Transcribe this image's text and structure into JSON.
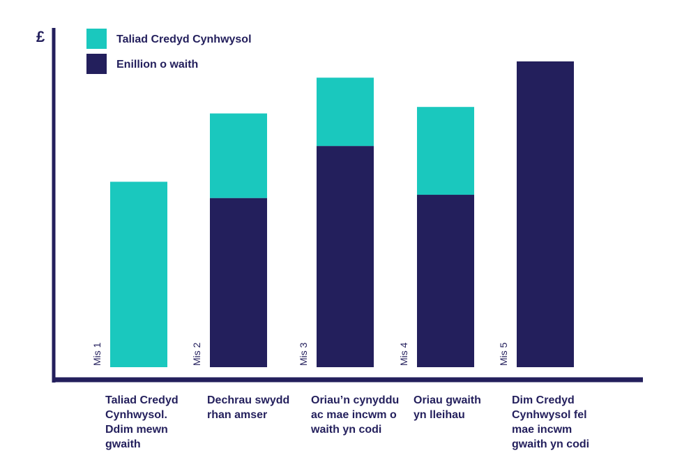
{
  "chart_data": {
    "type": "bar",
    "stacked": true,
    "y_axis_symbol": "£",
    "y_tick_labels": false,
    "grid": false,
    "legend_position": "top-left",
    "colors": {
      "Taliad Credyd Cynhwysol": "#1ac8be",
      "Enillion o waith": "#231f5c",
      "axis": "#231f5c",
      "text": "#231f5c"
    },
    "legend": [
      {
        "name": "Taliad Credyd Cynhwysol",
        "color": "#1ac8be"
      },
      {
        "name": "Enillion o waith",
        "color": "#231f5c"
      }
    ],
    "month_labels": [
      "Mis 1",
      "Mis 2",
      "Mis 3",
      "Mis 4",
      "Mis 5"
    ],
    "categories": [
      "Taliad Credyd Cynhwysol. Ddim mewn gwaith",
      "Dechrau swydd rhan amser",
      "Oriau’n cynyddu ac mae incwm o waith yn codi",
      "Oriau gwaith yn lleihau",
      "Dim Credyd Cynhwysol fel mae incwm gwaith yn codi"
    ],
    "category_lines": [
      [
        "Taliad Credyd",
        "Cynhwysol.",
        "Ddim mewn",
        "gwaith"
      ],
      [
        "Dechrau swydd",
        "rhan amser"
      ],
      [
        "Oriau’n cynyddu",
        "ac mae incwm o",
        "waith yn codi"
      ],
      [
        "Oriau gwaith",
        "yn lleihau"
      ],
      [
        "Dim Credyd",
        "Cynhwysol fel",
        "mae incwm",
        "gwaith yn codi"
      ]
    ],
    "series": [
      {
        "name": "Enillion o waith",
        "values": [
          0,
          52,
          68,
          53,
          94
        ]
      },
      {
        "name": "Taliad Credyd Cynhwysol",
        "values": [
          57,
          26,
          21,
          27,
          0
        ]
      }
    ],
    "ylim": [
      0,
      100
    ]
  }
}
